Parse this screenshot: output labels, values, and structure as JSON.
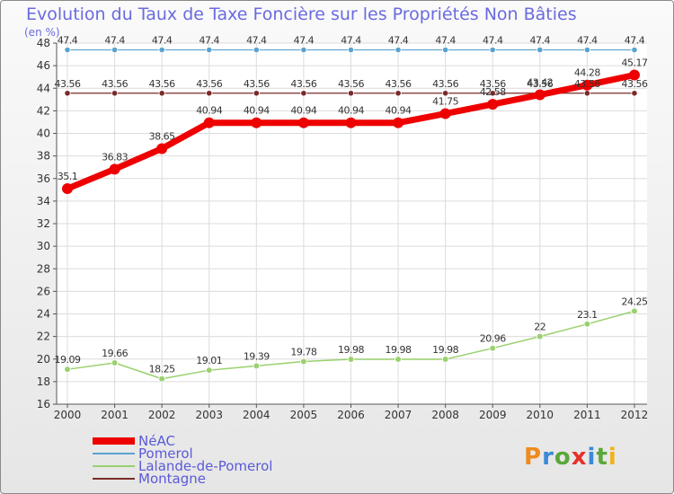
{
  "chart_data": {
    "type": "line",
    "title": "Evolution du Taux de Taxe Foncière sur les Propriétés Non Bâties",
    "ylabel": "(en %)",
    "xlabel": "",
    "ylim": [
      16,
      48
    ],
    "ystep": 2,
    "grid": true,
    "legend_position": "bottom-left",
    "categories": [
      "2000",
      "2001",
      "2002",
      "2003",
      "2004",
      "2005",
      "2006",
      "2007",
      "2008",
      "2009",
      "2010",
      "2011",
      "2012"
    ],
    "series": [
      {
        "name": "Pomerol",
        "color": "#5aa2cf",
        "width": 1.2,
        "marker": 3.2,
        "values": [
          47.4,
          47.4,
          47.4,
          47.4,
          47.4,
          47.4,
          47.4,
          47.4,
          47.4,
          47.4,
          47.4,
          47.4,
          47.4
        ],
        "labels": [
          "47.4",
          "47.4",
          "47.4",
          "47.4",
          "47.4",
          "47.4",
          "47.4",
          "47.4",
          "47.4",
          "47.4",
          "47.4",
          "47.4",
          "47.4"
        ]
      },
      {
        "name": "Montagne",
        "color": "#7a2a2a",
        "width": 1.2,
        "marker": 3.2,
        "values": [
          43.56,
          43.56,
          43.56,
          43.56,
          43.56,
          43.56,
          43.56,
          43.56,
          43.56,
          43.56,
          43.56,
          43.56,
          43.56
        ],
        "labels": [
          "43.56",
          "43.56",
          "43.56",
          "43.56",
          "43.56",
          "43.56",
          "43.56",
          "43.56",
          "43.56",
          "43.56",
          "43.56",
          "43.56",
          "43.56"
        ]
      },
      {
        "name": "Lalande-de-Pomerol",
        "color": "#9ad16e",
        "width": 1.5,
        "marker": 3.4,
        "values": [
          19.09,
          19.66,
          18.25,
          19.01,
          19.39,
          19.78,
          19.98,
          19.98,
          19.98,
          20.96,
          22,
          23.1,
          24.25
        ],
        "labels": [
          "19.09",
          "19.66",
          "18.25",
          "19.01",
          "19.39",
          "19.78",
          "19.98",
          "19.98",
          "19.98",
          "20.96",
          "22",
          "23.1",
          "24.25"
        ]
      },
      {
        "name": "NéAC",
        "color": "#ee0000",
        "width": 7,
        "marker": 6,
        "values": [
          35.1,
          36.83,
          38.65,
          40.94,
          40.94,
          40.94,
          40.94,
          40.94,
          41.75,
          42.58,
          43.42,
          44.28,
          45.17
        ],
        "labels": [
          "35.1",
          "36.83",
          "38.65",
          "40.94",
          "40.94",
          "40.94",
          "40.94",
          "40.94",
          "41.75",
          "42.58",
          "43.42",
          "44.28",
          "45.17"
        ]
      }
    ],
    "legend": [
      "NéAC",
      "Pomerol",
      "Lalande-de-Pomerol",
      "Montagne"
    ]
  },
  "logo": {
    "text": "Proxiti"
  }
}
